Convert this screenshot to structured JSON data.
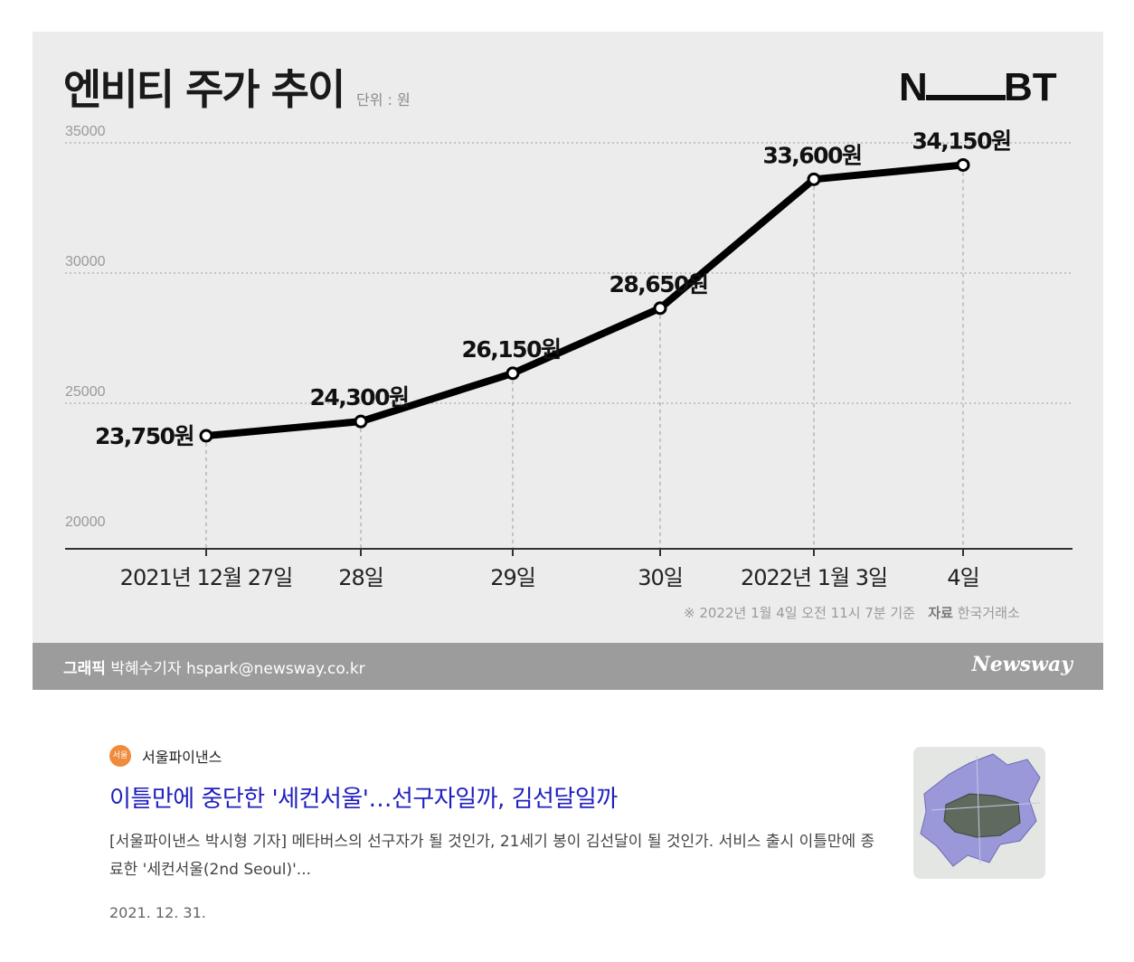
{
  "graphic": {
    "title": "엔비티 주가 추이",
    "unit_label": "단위 : 원",
    "logo_text": "NBT",
    "source_note_prefix": "※ 2022년 1월 4일 오전 11시 7분 기준",
    "source_label": "자료",
    "source_name": "한국거래소",
    "credit_label": "그래픽",
    "credit_name": "박혜수기자",
    "credit_email": "hspark@newsway.co.kr",
    "brand": "Newsway"
  },
  "chart_data": {
    "type": "line",
    "title": "엔비티 주가 추이",
    "x": [
      "2021년 12월 27일",
      "28일",
      "29일",
      "30일",
      "2022년 1월 3일",
      "4일"
    ],
    "values": [
      23750,
      24300,
      26150,
      28650,
      33600,
      34150
    ],
    "data_labels": [
      "23,750원",
      "24,300원",
      "26,150원",
      "28,650원",
      "33,600원",
      "34,150원"
    ],
    "y_ticks": [
      20000,
      25000,
      30000,
      35000
    ],
    "ylim": [
      20000,
      35000
    ],
    "grid": "dotted horizontal",
    "line_color": "#000000"
  },
  "news": {
    "publisher": "서울파이낸스",
    "publisher_icon_text": "서울",
    "headline": "이틀만에 중단한 '세컨서울'…선구자일까, 김선달일까",
    "snippet": "[서울파이낸스 박시형 기자] 메타버스의 선구자가 될 것인가, 21세기 봉이 김선달이 될 것인가. 서비스 출시 이틀만에 종료한 '세컨서울(2nd Seoul)'...",
    "date": "2021. 12. 31."
  }
}
